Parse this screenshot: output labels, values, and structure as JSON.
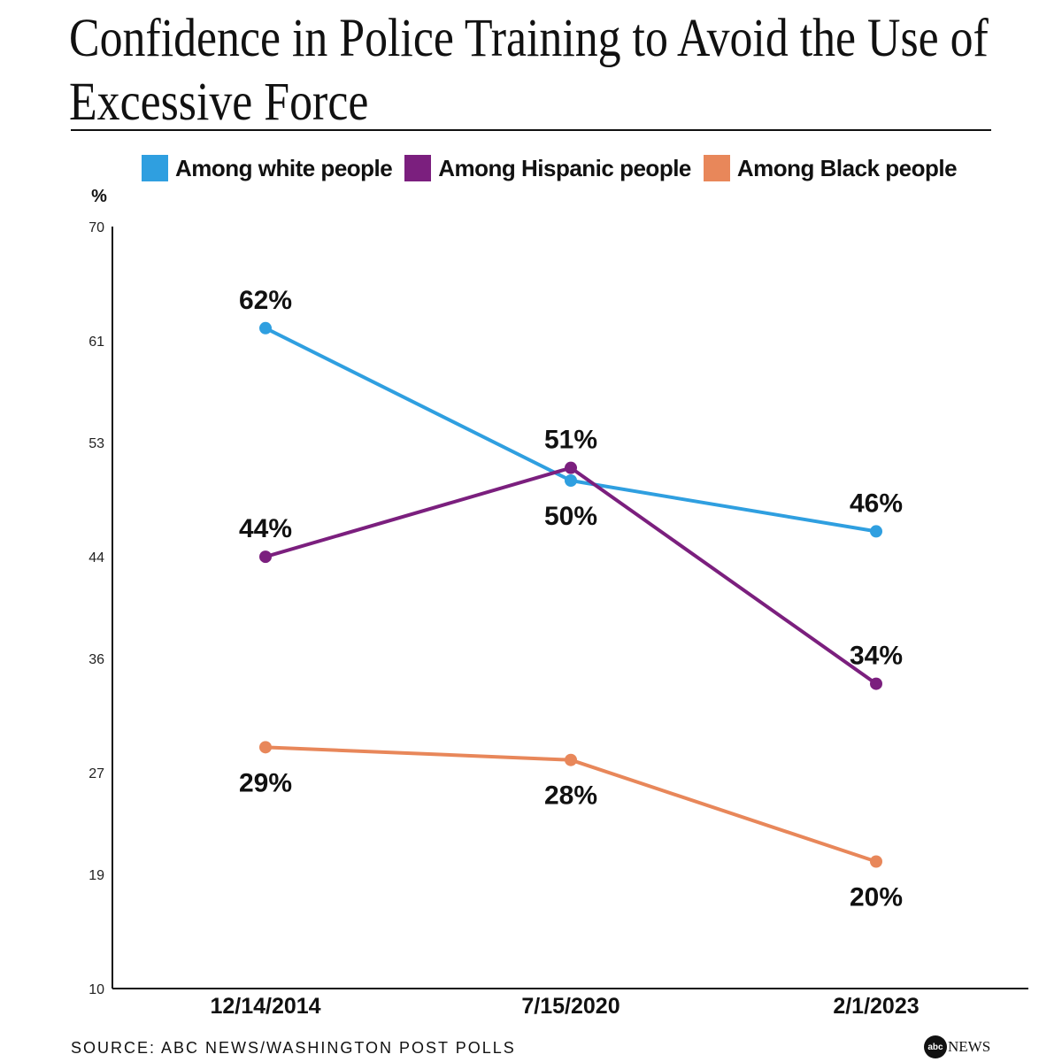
{
  "title": "Confidence in Police Training to Avoid the Use of Excessive Force",
  "source": "SOURCE: ABC NEWS/WASHINGTON POST POLLS",
  "logo": {
    "mark": "abc",
    "text": "NEWS"
  },
  "chart_data": {
    "type": "line",
    "title": "Confidence in Police Training to Avoid the Use of Excessive Force",
    "ylabel": "%",
    "xlabel": "",
    "ylim": [
      10,
      70
    ],
    "yticks": [
      10,
      19,
      27,
      36,
      44,
      53,
      61,
      70
    ],
    "categories": [
      "12/14/2014",
      "7/15/2020",
      "2/1/2023"
    ],
    "legend_position": "top",
    "grid": false,
    "series": [
      {
        "name": "Among white people",
        "color": "#2f9fe0",
        "values": [
          62,
          50,
          46
        ],
        "labels": [
          "62%",
          "50%",
          "46%"
        ],
        "label_side": [
          "above",
          "below",
          "above"
        ]
      },
      {
        "name": "Among Hispanic people",
        "color": "#7b1f7e",
        "values": [
          44,
          51,
          34
        ],
        "labels": [
          "44%",
          "51%",
          "34%"
        ],
        "label_side": [
          "above",
          "above",
          "above"
        ]
      },
      {
        "name": "Among Black people",
        "color": "#e8875a",
        "values": [
          29,
          28,
          20
        ],
        "labels": [
          "29%",
          "28%",
          "20%"
        ],
        "label_side": [
          "below",
          "below",
          "below"
        ]
      }
    ]
  }
}
